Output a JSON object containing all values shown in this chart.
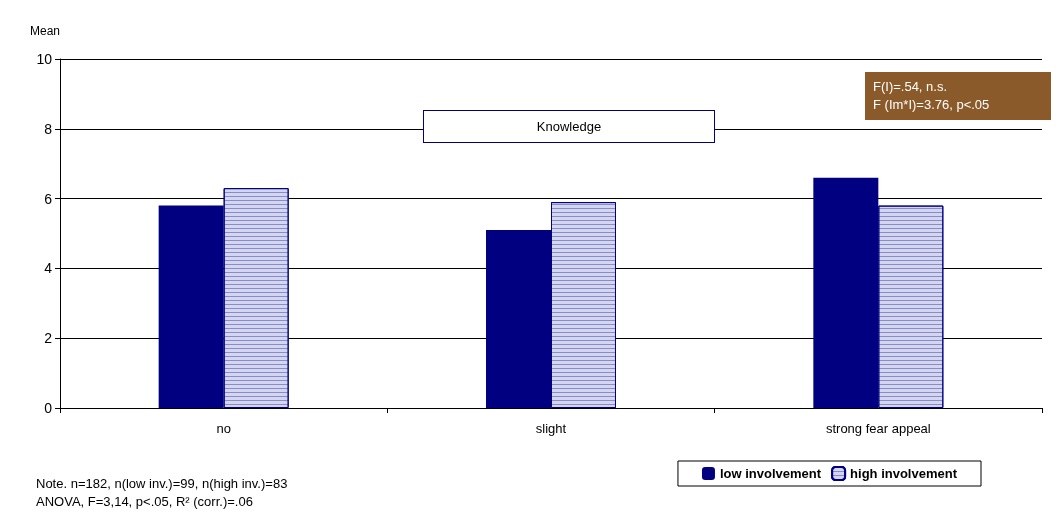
{
  "chart_data": {
    "type": "bar",
    "ylabel": "Mean",
    "categories": [
      "no",
      "slight",
      "strong fear appeal"
    ],
    "series": [
      {
        "name": "low involvement",
        "color": "#000080",
        "values": [
          5.8,
          5.1,
          6.6
        ]
      },
      {
        "name": "high involvement",
        "color": "#d4d6f0",
        "values": [
          6.3,
          5.9,
          5.8
        ]
      }
    ],
    "ylim": [
      0,
      10
    ],
    "yticks": [
      0,
      2,
      4,
      6,
      8,
      10
    ],
    "grid": "y",
    "legend": "bottom right",
    "annotations": [
      "Knowledge",
      "F(I)=.54, n.s.",
      "F (Im*I)=3.76, p<.05",
      "Note. n=182, n(low inv.)=99, n(high inv.)=83",
      "ANOVA, F=3,14, p<.05, R² (corr.)=.06"
    ]
  }
}
